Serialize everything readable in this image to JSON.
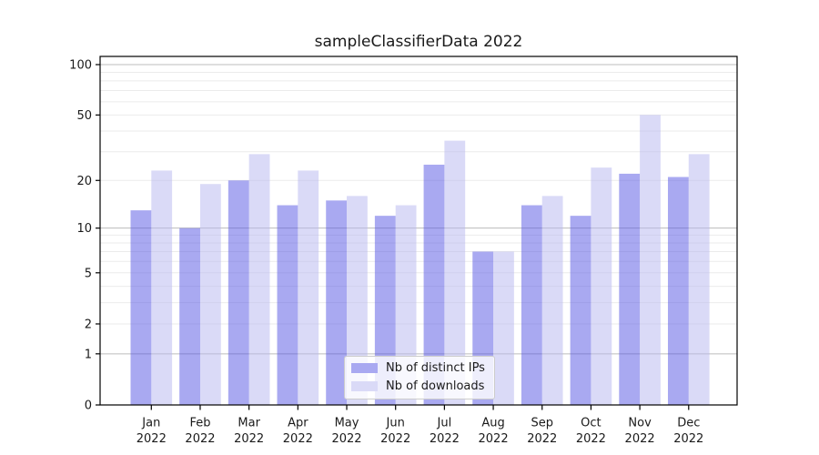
{
  "chart_data": {
    "type": "bar",
    "title": "sampleClassifierData 2022",
    "categories": [
      "Jan",
      "Feb",
      "Mar",
      "Apr",
      "May",
      "Jun",
      "Jul",
      "Aug",
      "Sep",
      "Oct",
      "Nov",
      "Dec"
    ],
    "category_year": "2022",
    "series": [
      {
        "name": "Nb of distinct IPs",
        "color": "#a9a9f1",
        "values": [
          13,
          10,
          20,
          14,
          15,
          12,
          25,
          7,
          14,
          12,
          22,
          21
        ]
      },
      {
        "name": "Nb of downloads",
        "color": "#dadaf7",
        "values": [
          23,
          19,
          29,
          23,
          16,
          14,
          35,
          7,
          16,
          24,
          50,
          29
        ]
      }
    ],
    "y_axis": {
      "scale": "log1p",
      "tick_values": [
        100,
        50,
        20,
        10,
        5,
        2,
        1,
        0
      ],
      "major_grid_values": [
        1,
        10,
        100
      ],
      "minor_grid_values": [
        2,
        3,
        4,
        5,
        6,
        7,
        8,
        9,
        20,
        30,
        40,
        50,
        60,
        70,
        80,
        90
      ],
      "ylim": [
        0,
        112
      ]
    },
    "grid": true,
    "legend_position": "lower-center",
    "colors": {
      "major_grid": "#bcbcbc",
      "minor_grid": "#ebebeb",
      "spine": "#000000",
      "tick_text": "#1a1a1a"
    }
  }
}
